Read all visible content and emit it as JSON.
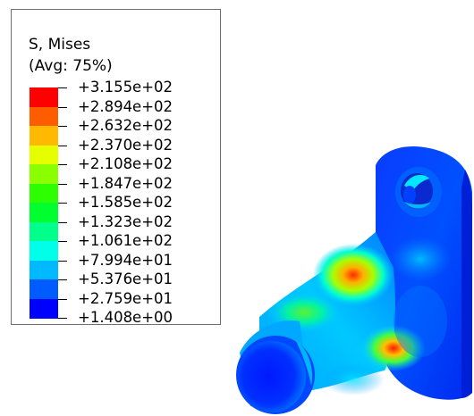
{
  "legend": {
    "title": "S, Mises",
    "subtitle": "(Avg: 75%)",
    "values": [
      "+3.155e+02",
      "+2.894e+02",
      "+2.632e+02",
      "+2.370e+02",
      "+2.108e+02",
      "+1.847e+02",
      "+1.585e+02",
      "+1.323e+02",
      "+1.061e+02",
      "+7.994e+01",
      "+5.376e+01",
      "+2.759e+01",
      "+1.408e+00"
    ],
    "colors": [
      "#ff0000",
      "#ff5c00",
      "#ffb900",
      "#e5ff00",
      "#8aff00",
      "#2dff00",
      "#00ff2e",
      "#00ff8b",
      "#00ffe8",
      "#00b9ff",
      "#005cff",
      "#0000ff"
    ]
  },
  "model": {
    "name": "mises-stress-contour-plot"
  }
}
